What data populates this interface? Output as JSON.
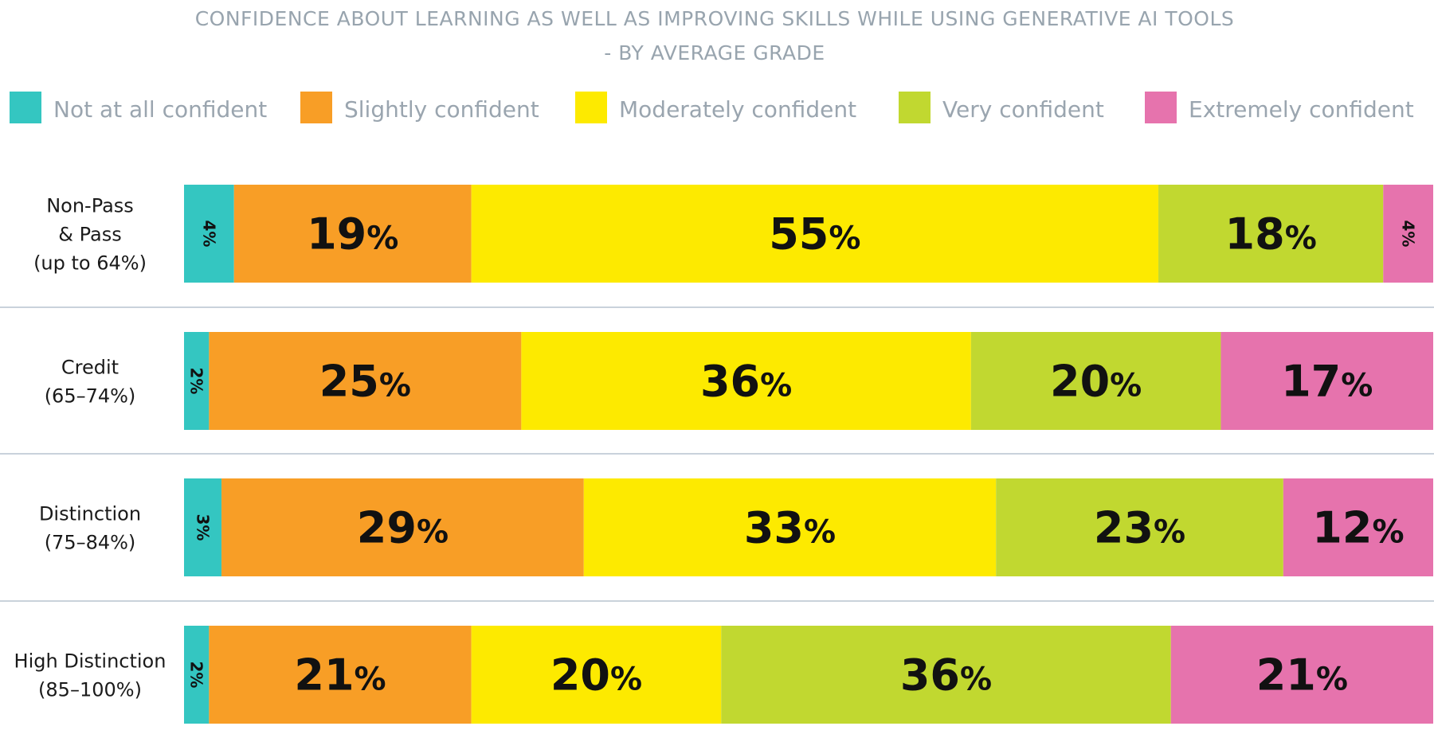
{
  "chart_data": {
    "type": "bar",
    "orientation": "horizontal",
    "stacked": true,
    "title_lines": [
      "CONFIDENCE ABOUT LEARNING AS WELL AS IMPROVING SKILLS WHILE USING GENERATIVE AI TOOLS",
      "- BY AVERAGE GRADE"
    ],
    "legend_position": "top",
    "categories": [
      [
        "Non-Pass",
        "& Pass",
        "(up to 64%)"
      ],
      [
        "Credit",
        "(65–74%)"
      ],
      [
        "Distinction",
        "(75–84%)"
      ],
      [
        "High Distinction",
        "(85–100%)"
      ]
    ],
    "series": [
      {
        "name": "Not at all confident",
        "color": "#34c6c1",
        "values": [
          4,
          2,
          3,
          2
        ]
      },
      {
        "name": "Slightly confident",
        "color": "#f89e26",
        "values": [
          19,
          25,
          29,
          21
        ]
      },
      {
        "name": "Moderately confident",
        "color": "#fdea00",
        "values": [
          55,
          36,
          33,
          20
        ]
      },
      {
        "name": "Very confident",
        "color": "#c1d830",
        "values": [
          18,
          20,
          23,
          36
        ]
      },
      {
        "name": "Extremely confident",
        "color": "#e673ad",
        "values": [
          4,
          17,
          12,
          21
        ]
      }
    ],
    "value_suffix": "%",
    "separator_color": "#b7c4cf"
  }
}
